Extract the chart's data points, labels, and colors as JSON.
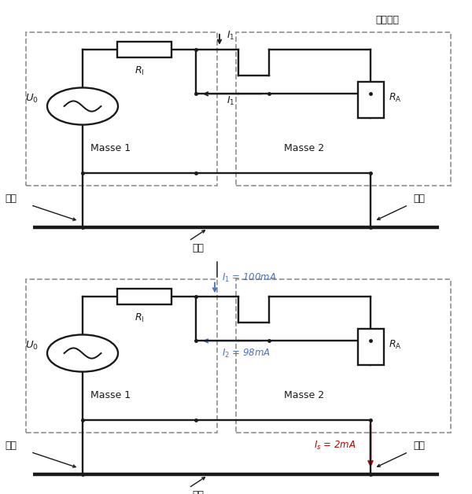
{
  "bg_color": "#ffffff",
  "line_color": "#1a1a1a",
  "dash_color": "#999999",
  "blue_color": "#4472c4",
  "red_color": "#cc0000",
  "title1": "终端外壳",
  "masse1": "Masse 1",
  "masse2": "Masse 2",
  "R1_label": "$R_1$",
  "RA_label": "$R_A$",
  "U0_label": "$U_0$",
  "I1_label": "$I_1$",
  "I1_val": "$I_1$ = 100mA",
  "I2_val": "$I_2$ = 98mA",
  "Is_val": "$I_s$ = 2mA",
  "dizhu": "地线",
  "dadi": "大地",
  "font_cjk": "SimHei"
}
